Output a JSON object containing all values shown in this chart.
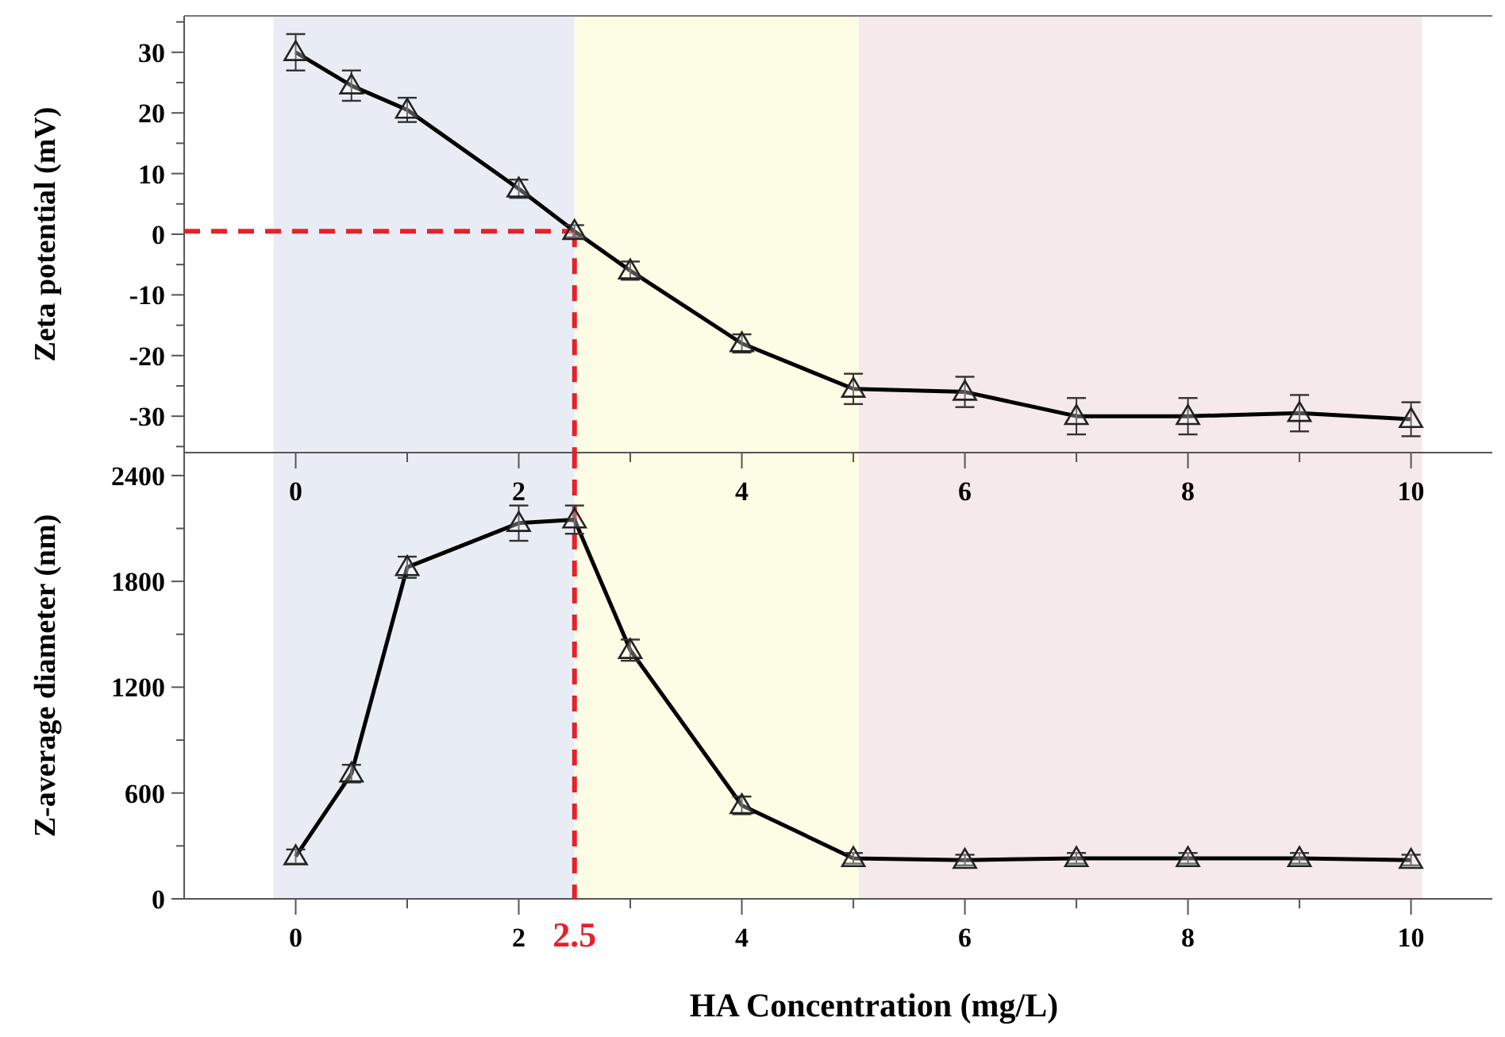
{
  "chart_data": [
    {
      "type": "line",
      "ylabel": "Zeta potential (mV)",
      "marker": "triangle",
      "line_style": "solid",
      "grid": false,
      "x": [
        0,
        0.5,
        1,
        2,
        2.5,
        3,
        4,
        5,
        6,
        7,
        8,
        9,
        10
      ],
      "series": [
        {
          "color": "#000000",
          "values": [
            30,
            24.5,
            20.5,
            7.5,
            0.5,
            -6,
            -18,
            -25.5,
            -26,
            -30,
            -30,
            -29.5,
            -30.5
          ],
          "errors": [
            3,
            2.5,
            2,
            1.5,
            1,
            1.5,
            1.5,
            2.5,
            2.5,
            3,
            3,
            3,
            2.8
          ]
        }
      ],
      "xlim": [
        -1,
        10.8
      ],
      "ylim": [
        -36,
        36
      ],
      "xticks": [
        0,
        {
          "value": 1,
          "label": null
        },
        2,
        {
          "value": 3,
          "label": null
        },
        4,
        {
          "value": 5,
          "label": null
        },
        6,
        {
          "value": 7,
          "label": null
        },
        8,
        {
          "value": 9,
          "label": null
        },
        10
      ],
      "yticks": [
        {
          "value": -35,
          "label": null
        },
        -30,
        {
          "value": -25,
          "label": null
        },
        -20,
        {
          "value": -15,
          "label": null
        },
        -10,
        {
          "value": -5,
          "label": null
        },
        0,
        {
          "value": 5,
          "label": null
        },
        10,
        {
          "value": 15,
          "label": null
        },
        20,
        {
          "value": 25,
          "label": null
        },
        30,
        {
          "value": 35,
          "label": null
        }
      ],
      "bands": [
        {
          "axis": "x",
          "from": -0.2,
          "to": 2.5,
          "color": "#e8edf5"
        },
        {
          "axis": "x",
          "from": 2.5,
          "to": 5.05,
          "color": "#fcfde4"
        },
        {
          "axis": "x",
          "from": 5.05,
          "to": 10.1,
          "color": "#f6e9ec"
        }
      ],
      "ref_lines": [
        {
          "axis": "y",
          "value": 0.5,
          "color": "#e8202a",
          "line_style": "dashed"
        },
        {
          "axis": "x",
          "value": 2.5,
          "color": "#e8202a",
          "line_style": "dashed"
        }
      ]
    },
    {
      "type": "line",
      "ylabel": "Z-average diameter (nm)",
      "xlabel": "HA Concentration (mg/L)",
      "marker": "triangle",
      "line_style": "solid",
      "grid": false,
      "x": [
        0,
        0.5,
        1,
        2,
        2.5,
        3,
        4,
        5,
        6,
        7,
        8,
        9,
        10
      ],
      "series": [
        {
          "color": "#000000",
          "values": [
            240,
            710,
            1880,
            2130,
            2150,
            1410,
            530,
            230,
            220,
            230,
            230,
            230,
            220
          ],
          "errors": [
            40,
            50,
            60,
            100,
            80,
            60,
            50,
            30,
            30,
            30,
            30,
            30,
            30
          ]
        }
      ],
      "xlim": [
        -1,
        10.8
      ],
      "ylim": [
        0,
        2530
      ],
      "xticks": [
        0,
        {
          "value": 1,
          "label": null
        },
        2,
        {
          "value": 3,
          "label": null
        },
        4,
        {
          "value": 5,
          "label": null
        },
        6,
        {
          "value": 7,
          "label": null
        },
        8,
        {
          "value": 9,
          "label": null
        },
        10
      ],
      "yticks": [
        0,
        {
          "value": 300,
          "label": null
        },
        600,
        {
          "value": 900,
          "label": null
        },
        1200,
        {
          "value": 1500,
          "label": null
        },
        1800,
        {
          "value": 2100,
          "label": null
        },
        2400
      ],
      "bands": [
        {
          "axis": "x",
          "from": -0.2,
          "to": 2.5,
          "color": "#e8edf5"
        },
        {
          "axis": "x",
          "from": 2.5,
          "to": 5.05,
          "color": "#fcfde4"
        },
        {
          "axis": "x",
          "from": 5.05,
          "to": 10.1,
          "color": "#f6e9ec"
        }
      ],
      "ref_lines": [
        {
          "axis": "x",
          "value": 2.5,
          "label": "2.5",
          "color": "#e8202a",
          "line_style": "dashed"
        }
      ]
    }
  ]
}
